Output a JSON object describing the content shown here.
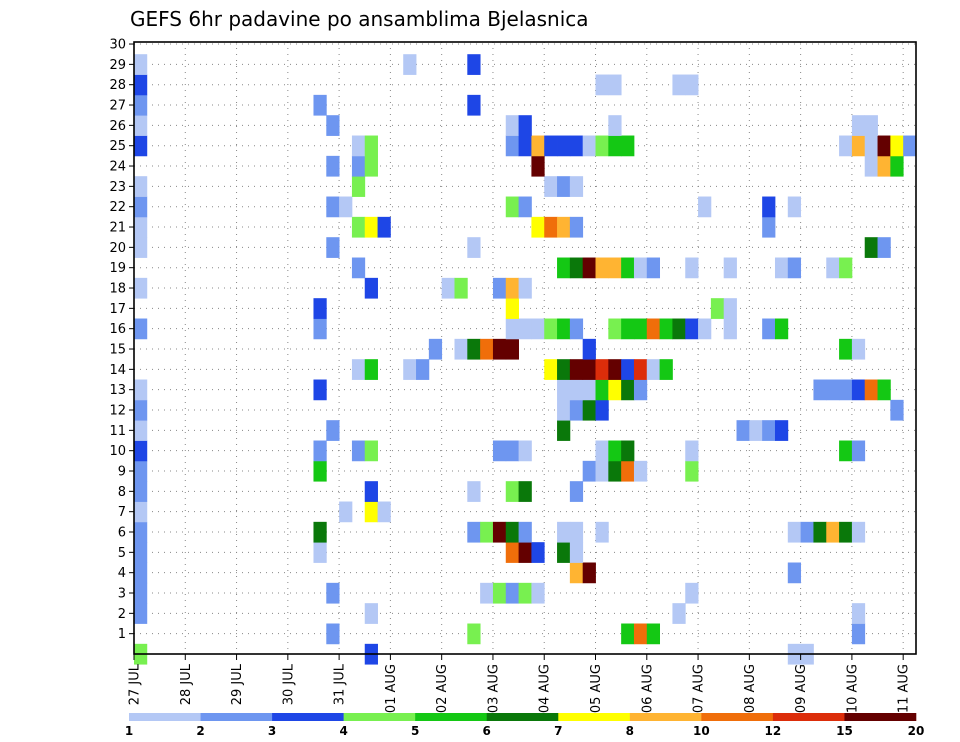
{
  "chart_data": {
    "type": "heatmap",
    "title": "GEFS 6hr padavine po ansamblima Bjelasnica",
    "x_ticks": [
      "27 JUL",
      "28 JUL",
      "29 JUL",
      "30 JUL",
      "31 JUL",
      "01 AUG",
      "02 AUG",
      "03 AUG",
      "04 AUG",
      "05 AUG",
      "06 AUG",
      "07 AUG",
      "08 AUG",
      "09 AUG",
      "10 AUG",
      "11 AUG"
    ],
    "y_ticks": [
      "1",
      "2",
      "3",
      "4",
      "5",
      "6",
      "7",
      "8",
      "9",
      "10",
      "11",
      "12",
      "13",
      "14",
      "15",
      "16",
      "17",
      "18",
      "19",
      "20",
      "21",
      "22",
      "23",
      "24",
      "25",
      "26",
      "27",
      "28",
      "29",
      "30"
    ],
    "y_range": [
      0,
      30
    ],
    "x_steps": 61,
    "grid": true,
    "colorbar": {
      "colors": [
        "#b4c8f5",
        "#6e96f0",
        "#1e46e6",
        "#78f050",
        "#14c814",
        "#0a780a",
        "#ffff00",
        "#ffb432",
        "#f06e0a",
        "#dc2d0a",
        "#640000"
      ],
      "labels": [
        "1",
        "2",
        "3",
        "4",
        "5",
        "6",
        "7",
        "8",
        "10",
        "12",
        "15",
        "20"
      ]
    },
    "cells": [
      [
        0,
        0,
        4
      ],
      [
        18,
        0,
        3
      ],
      [
        51,
        0,
        1
      ],
      [
        52,
        0,
        1
      ],
      [
        15,
        1,
        2
      ],
      [
        26,
        1,
        4
      ],
      [
        38,
        1,
        5
      ],
      [
        39,
        1,
        9
      ],
      [
        40,
        1,
        5
      ],
      [
        56,
        1,
        2
      ],
      [
        0,
        2,
        2
      ],
      [
        18,
        2,
        1
      ],
      [
        42,
        2,
        1
      ],
      [
        56,
        2,
        1
      ],
      [
        0,
        3,
        2
      ],
      [
        15,
        3,
        2
      ],
      [
        27,
        3,
        1
      ],
      [
        28,
        3,
        4
      ],
      [
        29,
        3,
        2
      ],
      [
        30,
        3,
        4
      ],
      [
        31,
        3,
        1
      ],
      [
        43,
        3,
        1
      ],
      [
        0,
        4,
        2
      ],
      [
        34,
        4,
        8
      ],
      [
        35,
        4,
        11
      ],
      [
        51,
        4,
        2
      ],
      [
        0,
        5,
        2
      ],
      [
        14,
        5,
        1
      ],
      [
        29,
        5,
        9
      ],
      [
        30,
        5,
        11
      ],
      [
        31,
        5,
        3
      ],
      [
        33,
        5,
        6
      ],
      [
        34,
        5,
        1
      ],
      [
        0,
        6,
        2
      ],
      [
        14,
        6,
        6
      ],
      [
        26,
        6,
        2
      ],
      [
        27,
        6,
        4
      ],
      [
        28,
        6,
        11
      ],
      [
        29,
        6,
        6
      ],
      [
        30,
        6,
        2
      ],
      [
        33,
        6,
        1
      ],
      [
        34,
        6,
        1
      ],
      [
        36,
        6,
        1
      ],
      [
        51,
        6,
        1
      ],
      [
        52,
        6,
        2
      ],
      [
        53,
        6,
        6
      ],
      [
        54,
        6,
        8
      ],
      [
        55,
        6,
        6
      ],
      [
        56,
        6,
        1
      ],
      [
        0,
        7,
        1
      ],
      [
        16,
        7,
        1
      ],
      [
        18,
        7,
        7
      ],
      [
        19,
        7,
        1
      ],
      [
        0,
        8,
        2
      ],
      [
        18,
        8,
        3
      ],
      [
        26,
        8,
        1
      ],
      [
        29,
        8,
        4
      ],
      [
        30,
        8,
        6
      ],
      [
        34,
        8,
        2
      ],
      [
        0,
        9,
        2
      ],
      [
        14,
        9,
        5
      ],
      [
        35,
        9,
        2
      ],
      [
        36,
        9,
        1
      ],
      [
        37,
        9,
        6
      ],
      [
        38,
        9,
        9
      ],
      [
        39,
        9,
        1
      ],
      [
        43,
        9,
        4
      ],
      [
        0,
        10,
        3
      ],
      [
        14,
        10,
        2
      ],
      [
        17,
        10,
        2
      ],
      [
        18,
        10,
        4
      ],
      [
        28,
        10,
        2
      ],
      [
        29,
        10,
        2
      ],
      [
        30,
        10,
        1
      ],
      [
        36,
        10,
        1
      ],
      [
        37,
        10,
        5
      ],
      [
        38,
        10,
        6
      ],
      [
        43,
        10,
        1
      ],
      [
        55,
        10,
        5
      ],
      [
        56,
        10,
        2
      ],
      [
        0,
        11,
        1
      ],
      [
        15,
        11,
        2
      ],
      [
        33,
        11,
        6
      ],
      [
        47,
        11,
        2
      ],
      [
        48,
        11,
        1
      ],
      [
        49,
        11,
        2
      ],
      [
        50,
        11,
        3
      ],
      [
        0,
        12,
        2
      ],
      [
        33,
        12,
        1
      ],
      [
        34,
        12,
        2
      ],
      [
        35,
        12,
        6
      ],
      [
        36,
        12,
        3
      ],
      [
        59,
        12,
        2
      ],
      [
        0,
        13,
        1
      ],
      [
        14,
        13,
        3
      ],
      [
        33,
        13,
        1
      ],
      [
        34,
        13,
        1
      ],
      [
        35,
        13,
        1
      ],
      [
        36,
        13,
        5
      ],
      [
        37,
        13,
        7
      ],
      [
        38,
        13,
        6
      ],
      [
        39,
        13,
        2
      ],
      [
        53,
        13,
        2
      ],
      [
        54,
        13,
        2
      ],
      [
        55,
        13,
        2
      ],
      [
        56,
        13,
        3
      ],
      [
        57,
        13,
        9
      ],
      [
        58,
        13,
        5
      ],
      [
        17,
        14,
        1
      ],
      [
        18,
        14,
        5
      ],
      [
        21,
        14,
        1
      ],
      [
        22,
        14,
        2
      ],
      [
        32,
        14,
        7
      ],
      [
        33,
        14,
        6
      ],
      [
        34,
        14,
        11
      ],
      [
        35,
        14,
        11
      ],
      [
        36,
        14,
        10
      ],
      [
        37,
        14,
        11
      ],
      [
        38,
        14,
        3
      ],
      [
        39,
        14,
        10
      ],
      [
        40,
        14,
        1
      ],
      [
        41,
        14,
        5
      ],
      [
        23,
        15,
        2
      ],
      [
        25,
        15,
        1
      ],
      [
        26,
        15,
        6
      ],
      [
        27,
        15,
        9
      ],
      [
        28,
        15,
        11
      ],
      [
        29,
        15,
        11
      ],
      [
        35,
        15,
        3
      ],
      [
        55,
        15,
        5
      ],
      [
        56,
        15,
        1
      ],
      [
        0,
        16,
        2
      ],
      [
        14,
        16,
        2
      ],
      [
        29,
        16,
        1
      ],
      [
        30,
        16,
        1
      ],
      [
        31,
        16,
        1
      ],
      [
        32,
        16,
        4
      ],
      [
        33,
        16,
        5
      ],
      [
        34,
        16,
        2
      ],
      [
        37,
        16,
        4
      ],
      [
        38,
        16,
        5
      ],
      [
        39,
        16,
        5
      ],
      [
        40,
        16,
        9
      ],
      [
        41,
        16,
        5
      ],
      [
        42,
        16,
        6
      ],
      [
        43,
        16,
        3
      ],
      [
        44,
        16,
        1
      ],
      [
        46,
        16,
        1
      ],
      [
        49,
        16,
        2
      ],
      [
        50,
        16,
        5
      ],
      [
        14,
        17,
        3
      ],
      [
        29,
        17,
        7
      ],
      [
        45,
        17,
        4
      ],
      [
        46,
        17,
        1
      ],
      [
        0,
        18,
        1
      ],
      [
        18,
        18,
        3
      ],
      [
        24,
        18,
        1
      ],
      [
        25,
        18,
        4
      ],
      [
        28,
        18,
        2
      ],
      [
        29,
        18,
        8
      ],
      [
        30,
        18,
        1
      ],
      [
        17,
        19,
        2
      ],
      [
        33,
        19,
        5
      ],
      [
        34,
        19,
        6
      ],
      [
        35,
        19,
        11
      ],
      [
        36,
        19,
        8
      ],
      [
        37,
        19,
        8
      ],
      [
        38,
        19,
        5
      ],
      [
        39,
        19,
        1
      ],
      [
        40,
        19,
        2
      ],
      [
        43,
        19,
        1
      ],
      [
        46,
        19,
        1
      ],
      [
        50,
        19,
        1
      ],
      [
        51,
        19,
        2
      ],
      [
        54,
        19,
        1
      ],
      [
        55,
        19,
        4
      ],
      [
        0,
        20,
        1
      ],
      [
        15,
        20,
        2
      ],
      [
        26,
        20,
        1
      ],
      [
        57,
        20,
        6
      ],
      [
        58,
        20,
        2
      ],
      [
        0,
        21,
        1
      ],
      [
        17,
        21,
        4
      ],
      [
        18,
        21,
        7
      ],
      [
        19,
        21,
        3
      ],
      [
        31,
        21,
        7
      ],
      [
        32,
        21,
        9
      ],
      [
        33,
        21,
        8
      ],
      [
        34,
        21,
        2
      ],
      [
        49,
        21,
        2
      ],
      [
        0,
        22,
        2
      ],
      [
        15,
        22,
        2
      ],
      [
        16,
        22,
        1
      ],
      [
        29,
        22,
        4
      ],
      [
        30,
        22,
        2
      ],
      [
        44,
        22,
        1
      ],
      [
        49,
        22,
        3
      ],
      [
        51,
        22,
        1
      ],
      [
        0,
        23,
        1
      ],
      [
        17,
        23,
        4
      ],
      [
        32,
        23,
        1
      ],
      [
        33,
        23,
        2
      ],
      [
        34,
        23,
        1
      ],
      [
        15,
        24,
        2
      ],
      [
        17,
        24,
        2
      ],
      [
        18,
        24,
        4
      ],
      [
        31,
        24,
        11
      ],
      [
        57,
        24,
        1
      ],
      [
        58,
        24,
        8
      ],
      [
        59,
        24,
        5
      ],
      [
        0,
        25,
        3
      ],
      [
        17,
        25,
        1
      ],
      [
        18,
        25,
        4
      ],
      [
        29,
        25,
        2
      ],
      [
        30,
        25,
        3
      ],
      [
        31,
        25,
        8
      ],
      [
        32,
        25,
        3
      ],
      [
        33,
        25,
        3
      ],
      [
        34,
        25,
        3
      ],
      [
        35,
        25,
        1
      ],
      [
        36,
        25,
        4
      ],
      [
        37,
        25,
        5
      ],
      [
        38,
        25,
        5
      ],
      [
        55,
        25,
        1
      ],
      [
        56,
        25,
        8
      ],
      [
        57,
        25,
        1
      ],
      [
        58,
        25,
        11
      ],
      [
        59,
        25,
        7
      ],
      [
        60,
        25,
        2
      ],
      [
        0,
        26,
        1
      ],
      [
        15,
        26,
        2
      ],
      [
        29,
        26,
        1
      ],
      [
        30,
        26,
        3
      ],
      [
        37,
        26,
        1
      ],
      [
        56,
        26,
        1
      ],
      [
        57,
        26,
        1
      ],
      [
        0,
        27,
        2
      ],
      [
        14,
        27,
        2
      ],
      [
        26,
        27,
        3
      ],
      [
        0,
        28,
        3
      ],
      [
        36,
        28,
        1
      ],
      [
        37,
        28,
        1
      ],
      [
        42,
        28,
        1
      ],
      [
        43,
        28,
        1
      ],
      [
        0,
        29,
        1
      ],
      [
        21,
        29,
        1
      ],
      [
        26,
        29,
        3
      ]
    ]
  }
}
